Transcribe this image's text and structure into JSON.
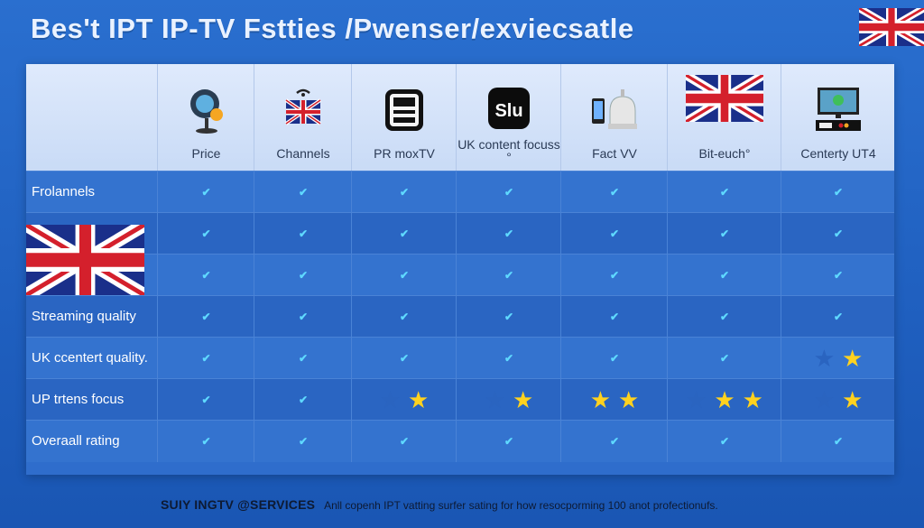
{
  "title": "Bes't IPT IP-TV Fstties /Pwenser/exviecsatle",
  "columns": [
    {
      "label": "Price",
      "icon": "globe-ipt-icon"
    },
    {
      "label": "Channels",
      "icon": "uk-flag-tv-icon"
    },
    {
      "label": "PR moxTV",
      "icon": "tv-box-icon"
    },
    {
      "label": "UK content focuss °",
      "icon": "slu-logo-icon"
    },
    {
      "label": "Fact VV",
      "icon": "phone-router-icon"
    },
    {
      "label": "Bit-euch°",
      "icon": "uk-flag-icon"
    },
    {
      "label": "Centerty UT4",
      "icon": "monitor-settop-icon"
    }
  ],
  "rows": [
    {
      "label": "Frolannels",
      "cells": [
        "check",
        "check",
        "check",
        "check",
        "check",
        "check",
        "check"
      ]
    },
    {
      "label": "",
      "cells": [
        "check",
        "check",
        "check",
        "check",
        "check",
        "check",
        "check"
      ]
    },
    {
      "label": "",
      "cells": [
        "check",
        "check",
        "check",
        "check",
        "check",
        "check",
        "check"
      ]
    },
    {
      "label": "Streaming quality",
      "cells": [
        "check",
        "check",
        "check",
        "check",
        "check",
        "check",
        "check"
      ]
    },
    {
      "label": "UK ccentert quality.",
      "cells": [
        "check",
        "check",
        "check",
        "check",
        "check",
        "check",
        "1 of 2 stars"
      ]
    },
    {
      "label": "UP trtens focus",
      "cells": [
        "check",
        "check",
        "1 of 2 stars",
        "1 of 2 stars",
        "2 of 2 stars",
        "2 of 3 stars",
        "1 of 2 stars"
      ]
    },
    {
      "label": "Overaall rating",
      "cells": [
        "check",
        "check",
        "check",
        "check",
        "check",
        "check",
        "check"
      ]
    }
  ],
  "checkmark": "✔",
  "star_glyph": "★",
  "footer": {
    "brand": "SUIY INGTV @SERVICES",
    "note": "Anll copenh IPT vatting surfer sating for how resocporming 100 anot profectionufs."
  },
  "colors": {
    "background": "#1f5fbf",
    "header_bg": "#dfeafc",
    "check": "#5fd9ff",
    "star_on": "#ffd21f",
    "star_off": "#2a64c0"
  }
}
